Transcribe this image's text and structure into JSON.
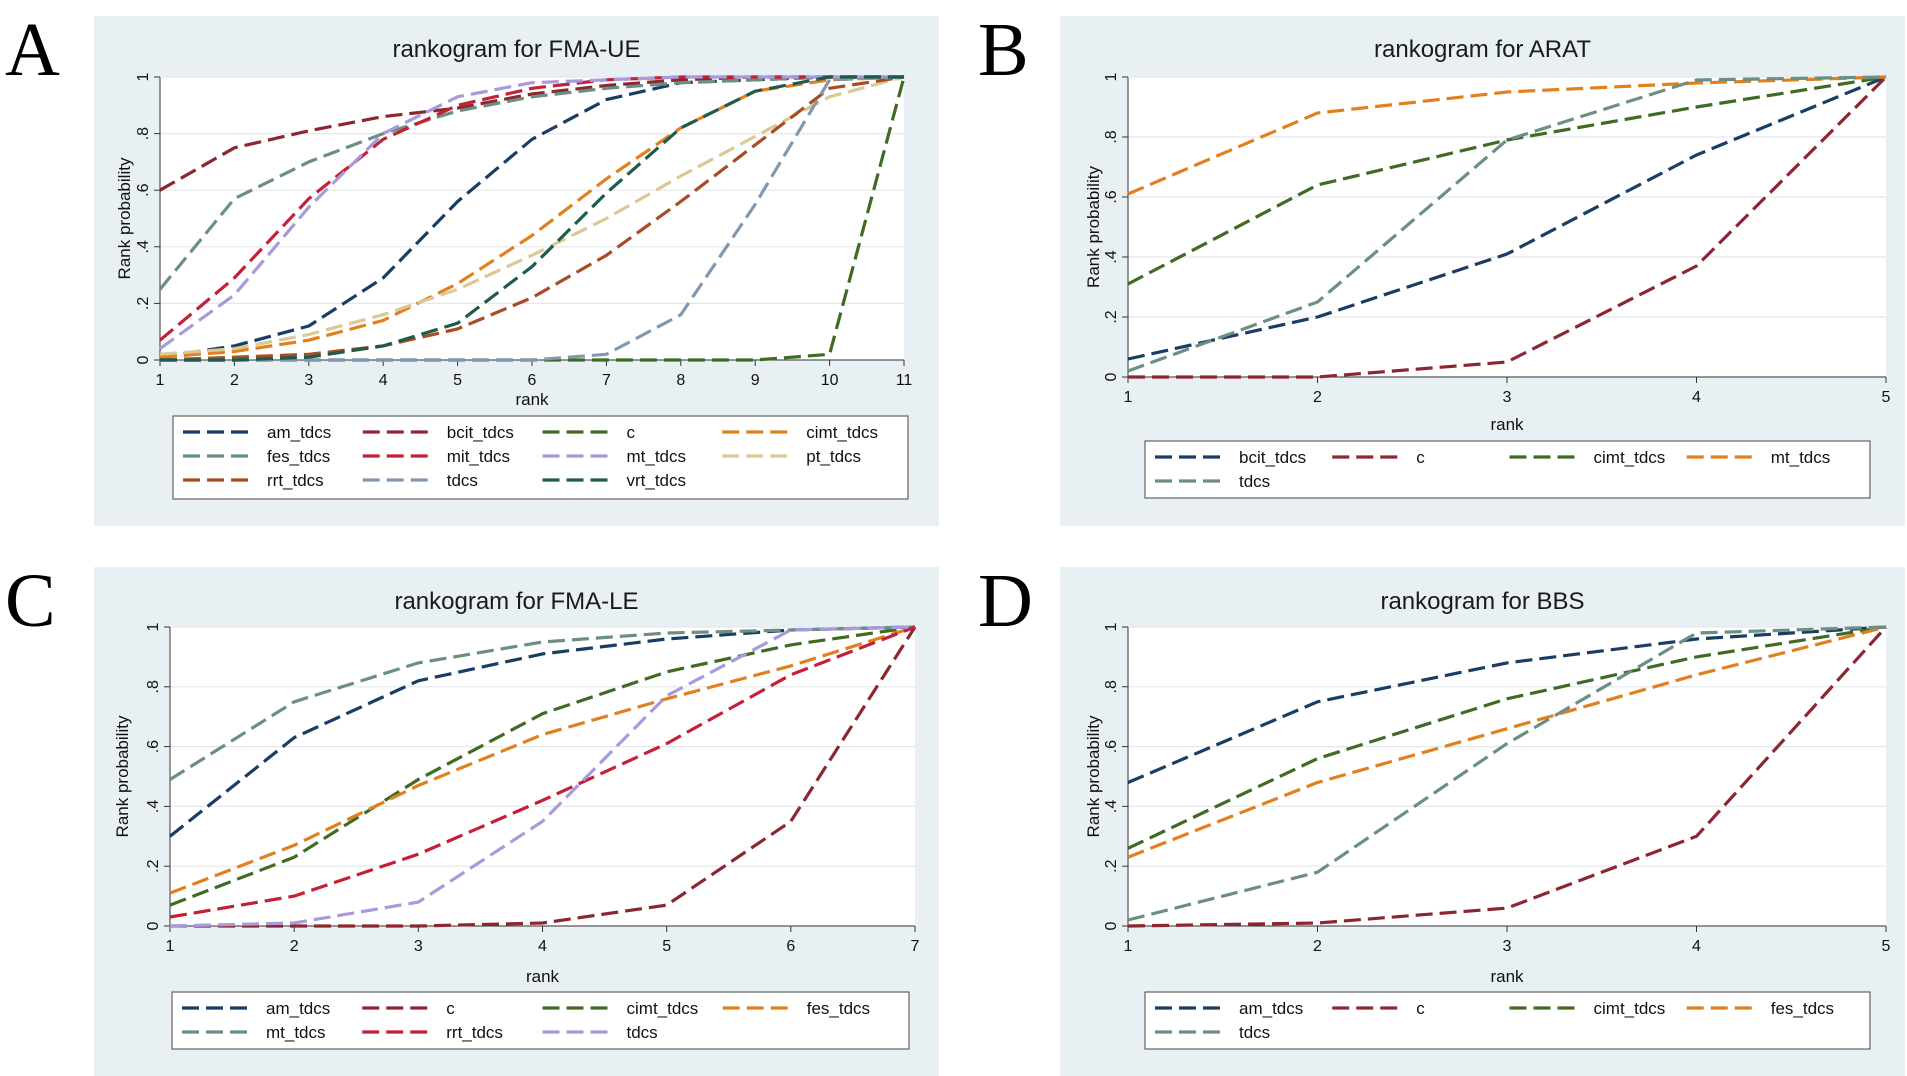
{
  "colors": {
    "navy": "#1a3d66",
    "maroon": "#8c2731",
    "green": "#3f6b24",
    "orange": "#e1801f",
    "teal": "#6b8f82",
    "red": "#c4203a",
    "lavender": "#a89adb",
    "tan": "#dcc894",
    "rust": "#a84c24",
    "slate": "#8198b0",
    "dteal": "#1e5b4c",
    "panel_bg": "#e8f0f3"
  },
  "chart_data": [
    {
      "letter": "A",
      "type": "line",
      "title": "rankogram for FMA-UE",
      "xlabel": "rank",
      "ylabel": "Rank probability",
      "xlim": [
        1,
        11
      ],
      "ylim": [
        0,
        1
      ],
      "xticks": [
        "1",
        "2",
        "3",
        "4",
        "5",
        "6",
        "7",
        "8",
        "9",
        "10",
        "11"
      ],
      "yticks": [
        "0",
        ".2",
        ".4",
        ".6",
        ".8",
        "1"
      ],
      "x": [
        1,
        2,
        3,
        4,
        5,
        6,
        7,
        8,
        9,
        10,
        11
      ],
      "legend_cols": 4,
      "series": [
        {
          "name": "am_tdcs",
          "color": "navy",
          "values": [
            0.01,
            0.05,
            0.12,
            0.29,
            0.56,
            0.78,
            0.92,
            0.98,
            0.99,
            1.0,
            1.0
          ]
        },
        {
          "name": "bcit_tdcs",
          "color": "maroon",
          "values": [
            0.6,
            0.75,
            0.81,
            0.86,
            0.89,
            0.94,
            0.97,
            0.99,
            1.0,
            1.0,
            1.0
          ]
        },
        {
          "name": "c",
          "color": "green",
          "values": [
            0,
            0,
            0,
            0,
            0,
            0,
            0,
            0,
            0,
            0.02,
            1.0
          ]
        },
        {
          "name": "cimt_tdcs",
          "color": "orange",
          "values": [
            0.01,
            0.03,
            0.07,
            0.14,
            0.27,
            0.44,
            0.64,
            0.82,
            0.95,
            0.99,
            1.0
          ]
        },
        {
          "name": "fes_tdcs",
          "color": "teal",
          "values": [
            0.25,
            0.57,
            0.7,
            0.8,
            0.88,
            0.93,
            0.96,
            0.98,
            0.99,
            1.0,
            1.0
          ]
        },
        {
          "name": "mit_tdcs",
          "color": "red",
          "values": [
            0.07,
            0.29,
            0.57,
            0.78,
            0.9,
            0.96,
            0.99,
            1.0,
            1.0,
            1.0,
            1.0
          ]
        },
        {
          "name": "mt_tdcs",
          "color": "lavender",
          "values": [
            0.04,
            0.23,
            0.54,
            0.8,
            0.93,
            0.98,
            0.99,
            1.0,
            1.0,
            1.0,
            1.0
          ]
        },
        {
          "name": "pt_tdcs",
          "color": "tan",
          "values": [
            0.02,
            0.04,
            0.09,
            0.16,
            0.25,
            0.37,
            0.5,
            0.65,
            0.79,
            0.93,
            1.0
          ]
        },
        {
          "name": "rrt_tdcs",
          "color": "rust",
          "values": [
            0,
            0.01,
            0.02,
            0.05,
            0.11,
            0.22,
            0.37,
            0.56,
            0.76,
            0.96,
            1.0
          ]
        },
        {
          "name": "tdcs",
          "color": "slate",
          "values": [
            0,
            0,
            0,
            0,
            0,
            0,
            0.02,
            0.16,
            0.55,
            0.99,
            1.0
          ]
        },
        {
          "name": "vrt_tdcs",
          "color": "dteal",
          "values": [
            0,
            0,
            0.01,
            0.05,
            0.13,
            0.33,
            0.59,
            0.82,
            0.95,
            1.0,
            1.0
          ]
        }
      ]
    },
    {
      "letter": "B",
      "type": "line",
      "title": "rankogram for ARAT",
      "xlabel": "rank",
      "ylabel": "Rank probability",
      "xlim": [
        1,
        5
      ],
      "ylim": [
        0,
        1
      ],
      "xticks": [
        "1",
        "2",
        "3",
        "4",
        "5"
      ],
      "yticks": [
        "0",
        ".2",
        ".4",
        ".6",
        ".8",
        "1"
      ],
      "x": [
        1,
        2,
        3,
        4,
        5
      ],
      "legend_cols": 4,
      "series": [
        {
          "name": "bcit_tdcs",
          "color": "navy",
          "values": [
            0.06,
            0.2,
            0.41,
            0.74,
            1.0
          ]
        },
        {
          "name": "c",
          "color": "maroon",
          "values": [
            0,
            0,
            0.05,
            0.37,
            1.0
          ]
        },
        {
          "name": "cimt_tdcs",
          "color": "green",
          "values": [
            0.31,
            0.64,
            0.79,
            0.9,
            1.0
          ]
        },
        {
          "name": "mt_tdcs",
          "color": "orange",
          "values": [
            0.61,
            0.88,
            0.95,
            0.98,
            1.0
          ]
        },
        {
          "name": "tdcs",
          "color": "teal",
          "values": [
            0.02,
            0.25,
            0.79,
            0.99,
            1.0
          ]
        }
      ]
    },
    {
      "letter": "C",
      "type": "line",
      "title": "rankogram for FMA-LE",
      "xlabel": "rank",
      "ylabel": "Rank probability",
      "xlim": [
        1,
        7
      ],
      "ylim": [
        0,
        1
      ],
      "xticks": [
        "1",
        "2",
        "3",
        "4",
        "5",
        "6",
        "7"
      ],
      "yticks": [
        "0",
        ".2",
        ".4",
        ".6",
        ".8",
        "1"
      ],
      "x": [
        1,
        2,
        3,
        4,
        5,
        6,
        7
      ],
      "legend_cols": 4,
      "series": [
        {
          "name": "am_tdcs",
          "color": "navy",
          "values": [
            0.3,
            0.63,
            0.82,
            0.91,
            0.96,
            0.99,
            1.0
          ]
        },
        {
          "name": "c",
          "color": "maroon",
          "values": [
            0,
            0,
            0,
            0.01,
            0.07,
            0.35,
            1.0
          ]
        },
        {
          "name": "cimt_tdcs",
          "color": "green",
          "values": [
            0.07,
            0.23,
            0.49,
            0.71,
            0.85,
            0.94,
            1.0
          ]
        },
        {
          "name": "fes_tdcs",
          "color": "orange",
          "values": [
            0.11,
            0.27,
            0.47,
            0.64,
            0.76,
            0.87,
            1.0
          ]
        },
        {
          "name": "mt_tdcs",
          "color": "teal",
          "values": [
            0.49,
            0.75,
            0.88,
            0.95,
            0.98,
            0.99,
            1.0
          ]
        },
        {
          "name": "rrt_tdcs",
          "color": "red",
          "values": [
            0.03,
            0.1,
            0.24,
            0.42,
            0.61,
            0.84,
            1.0
          ]
        },
        {
          "name": "tdcs",
          "color": "lavender",
          "values": [
            0,
            0.01,
            0.08,
            0.35,
            0.77,
            0.99,
            1.0
          ]
        }
      ]
    },
    {
      "letter": "D",
      "type": "line",
      "title": "rankogram for BBS",
      "xlabel": "rank",
      "ylabel": "Rank probability",
      "xlim": [
        1,
        5
      ],
      "ylim": [
        0,
        1
      ],
      "xticks": [
        "1",
        "2",
        "3",
        "4",
        "5"
      ],
      "yticks": [
        "0",
        ".2",
        ".4",
        ".6",
        ".8",
        "1"
      ],
      "x": [
        1,
        2,
        3,
        4,
        5
      ],
      "legend_cols": 4,
      "series": [
        {
          "name": "am_tdcs",
          "color": "navy",
          "values": [
            0.48,
            0.75,
            0.88,
            0.96,
            1.0
          ]
        },
        {
          "name": "c",
          "color": "maroon",
          "values": [
            0,
            0.01,
            0.06,
            0.3,
            1.0
          ]
        },
        {
          "name": "cimt_tdcs",
          "color": "green",
          "values": [
            0.26,
            0.56,
            0.76,
            0.9,
            1.0
          ]
        },
        {
          "name": "fes_tdcs",
          "color": "orange",
          "values": [
            0.23,
            0.48,
            0.66,
            0.84,
            1.0
          ]
        },
        {
          "name": "tdcs",
          "color": "teal",
          "values": [
            0.02,
            0.18,
            0.61,
            0.98,
            1.0
          ]
        }
      ]
    }
  ]
}
